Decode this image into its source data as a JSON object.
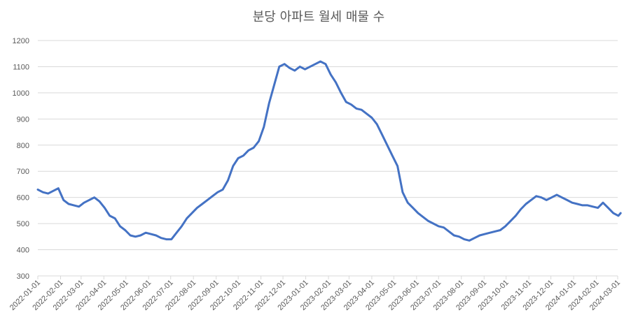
{
  "chart_data": {
    "type": "line",
    "title": "분당 아파트 월세 매물 수",
    "xlabel": "",
    "ylabel": "",
    "ylim": [
      300,
      1200
    ],
    "yticks": [
      300,
      400,
      500,
      600,
      700,
      800,
      900,
      1000,
      1100,
      1200
    ],
    "xticks": [
      "2022-01-01",
      "2022-02-01",
      "2022-03-01",
      "2022-04-01",
      "2022-05-01",
      "2022-06-01",
      "2022-07-01",
      "2022-08-01",
      "2022-09-01",
      "2022-10-01",
      "2022-11-01",
      "2022-12-01",
      "2023-01-01",
      "2023-02-01",
      "2023-03-01",
      "2023-04-01",
      "2023-05-01",
      "2023-06-01",
      "2023-07-01",
      "2023-08-01",
      "2023-09-01",
      "2023-10-01",
      "2023-11-01",
      "2023-12-01",
      "2024-01-01",
      "2024-02-01",
      "2024-03-01"
    ],
    "grid": true,
    "colors": {
      "series": "#4472c4",
      "grid": "#d9d9d9",
      "text": "#595959"
    },
    "series": [
      {
        "x": [
          "2022-01-01",
          "2022-01-08",
          "2022-01-15",
          "2022-01-22",
          "2022-01-29",
          "2022-02-05",
          "2022-02-12",
          "2022-02-19",
          "2022-02-26",
          "2022-03-05",
          "2022-03-12",
          "2022-03-19",
          "2022-03-26",
          "2022-04-02",
          "2022-04-09",
          "2022-04-16",
          "2022-04-23",
          "2022-04-30",
          "2022-05-07",
          "2022-05-14",
          "2022-05-21",
          "2022-05-28",
          "2022-06-04",
          "2022-06-11",
          "2022-06-18",
          "2022-06-25",
          "2022-07-02",
          "2022-07-09",
          "2022-07-16",
          "2022-07-23",
          "2022-07-30",
          "2022-08-06",
          "2022-08-13",
          "2022-08-20",
          "2022-08-27",
          "2022-09-03",
          "2022-09-10",
          "2022-09-17",
          "2022-09-24",
          "2022-10-01",
          "2022-10-08",
          "2022-10-15",
          "2022-10-22",
          "2022-10-29",
          "2022-11-05",
          "2022-11-12",
          "2022-11-19",
          "2022-11-26",
          "2022-12-03",
          "2022-12-10",
          "2022-12-17",
          "2022-12-24",
          "2022-12-31",
          "2023-01-07",
          "2023-01-14",
          "2023-01-21",
          "2023-01-28",
          "2023-02-04",
          "2023-02-11",
          "2023-02-18",
          "2023-02-25",
          "2023-03-04",
          "2023-03-11",
          "2023-03-18",
          "2023-03-25",
          "2023-04-01",
          "2023-04-08",
          "2023-04-15",
          "2023-04-22",
          "2023-04-29",
          "2023-05-06",
          "2023-05-13",
          "2023-05-20",
          "2023-05-27",
          "2023-06-03",
          "2023-06-10",
          "2023-06-17",
          "2023-06-24",
          "2023-07-01",
          "2023-07-08",
          "2023-07-15",
          "2023-07-22",
          "2023-07-29",
          "2023-08-05",
          "2023-08-12",
          "2023-08-19",
          "2023-08-26",
          "2023-09-02",
          "2023-09-09",
          "2023-09-16",
          "2023-09-23",
          "2023-09-30",
          "2023-10-07",
          "2023-10-14",
          "2023-10-21",
          "2023-10-28",
          "2023-11-04",
          "2023-11-11",
          "2023-11-18",
          "2023-11-25",
          "2023-12-02",
          "2023-12-09",
          "2023-12-16",
          "2023-12-23",
          "2023-12-30",
          "2024-01-06",
          "2024-01-13",
          "2024-01-20",
          "2024-01-27",
          "2024-02-03",
          "2024-02-10",
          "2024-02-17",
          "2024-02-24",
          "2024-03-02",
          "2024-03-05"
        ],
        "values": [
          630,
          620,
          615,
          625,
          635,
          590,
          575,
          570,
          565,
          580,
          590,
          600,
          585,
          560,
          530,
          520,
          490,
          475,
          455,
          450,
          455,
          465,
          460,
          455,
          445,
          440,
          440,
          465,
          490,
          520,
          540,
          560,
          575,
          590,
          605,
          620,
          630,
          665,
          720,
          750,
          760,
          780,
          790,
          815,
          870,
          960,
          1030,
          1100,
          1110,
          1095,
          1085,
          1100,
          1090,
          1100,
          1110,
          1120,
          1110,
          1070,
          1040,
          1000,
          965,
          955,
          940,
          935,
          920,
          905,
          880,
          840,
          800,
          760,
          720,
          620,
          580,
          560,
          540,
          525,
          510,
          500,
          490,
          485,
          470,
          455,
          450,
          440,
          435,
          445,
          455,
          460,
          465,
          470,
          475,
          490,
          510,
          530,
          555,
          575,
          590,
          605,
          600,
          590,
          600,
          610,
          600,
          590,
          580,
          575,
          570,
          570,
          565,
          560,
          580,
          560,
          540,
          530,
          540
        ]
      }
    ]
  }
}
